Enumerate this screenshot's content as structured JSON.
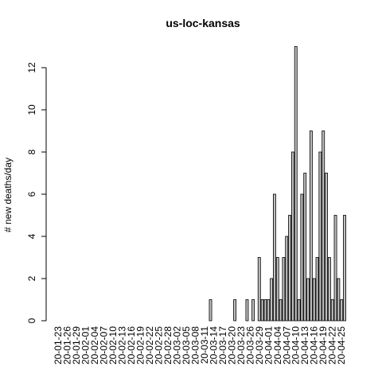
{
  "chart_data": {
    "type": "bar",
    "title": "us-loc-kansas",
    "y_label": "# new deaths/day",
    "categories": [
      "20-01-23",
      null,
      null,
      "20-01-26",
      null,
      null,
      "20-01-29",
      null,
      null,
      "20-02-01",
      null,
      null,
      "20-02-04",
      null,
      null,
      "20-02-07",
      null,
      null,
      "20-02-10",
      null,
      null,
      "20-02-13",
      null,
      null,
      "20-02-16",
      null,
      null,
      "20-02-19",
      null,
      null,
      "20-02-22",
      null,
      null,
      "20-02-25",
      null,
      null,
      "20-02-28",
      null,
      null,
      "20-03-02",
      null,
      null,
      "20-03-05",
      null,
      null,
      "20-03-08",
      null,
      null,
      "20-03-11",
      null,
      null,
      "20-03-14",
      null,
      null,
      "20-03-17",
      null,
      null,
      "20-03-20",
      null,
      null,
      "20-03-23",
      null,
      null,
      "20-03-26",
      null,
      null,
      "20-03-29",
      null,
      null,
      "20-04-01",
      null,
      null,
      "20-04-04",
      null,
      null,
      "20-04-07",
      null,
      null,
      "20-04-10",
      null,
      null,
      "20-04-13",
      null,
      null,
      "20-04-16",
      null,
      null,
      "20-04-19",
      null,
      null,
      "20-04-22",
      null,
      null,
      "20-04-25",
      null
    ],
    "values": [
      0,
      0,
      0,
      0,
      0,
      0,
      0,
      0,
      0,
      0,
      0,
      0,
      0,
      0,
      0,
      0,
      0,
      0,
      0,
      0,
      0,
      0,
      0,
      0,
      0,
      0,
      0,
      0,
      0,
      0,
      0,
      0,
      0,
      0,
      0,
      0,
      0,
      0,
      0,
      0,
      0,
      0,
      0,
      0,
      0,
      0,
      0,
      0,
      0,
      0,
      1,
      0,
      0,
      0,
      0,
      0,
      0,
      0,
      1,
      0,
      0,
      0,
      1,
      0,
      1,
      0,
      3,
      1,
      1,
      1,
      2,
      6,
      3,
      1,
      3,
      4,
      5,
      8,
      13,
      1,
      6,
      7,
      2,
      9,
      2,
      3,
      8,
      9,
      7,
      3,
      1,
      5,
      2,
      1,
      5
    ],
    "color": "#bebebe",
    "ylim": [
      0,
      13
    ],
    "yticks": [
      0,
      2,
      4,
      6,
      8,
      10,
      12
    ],
    "grid": false
  }
}
